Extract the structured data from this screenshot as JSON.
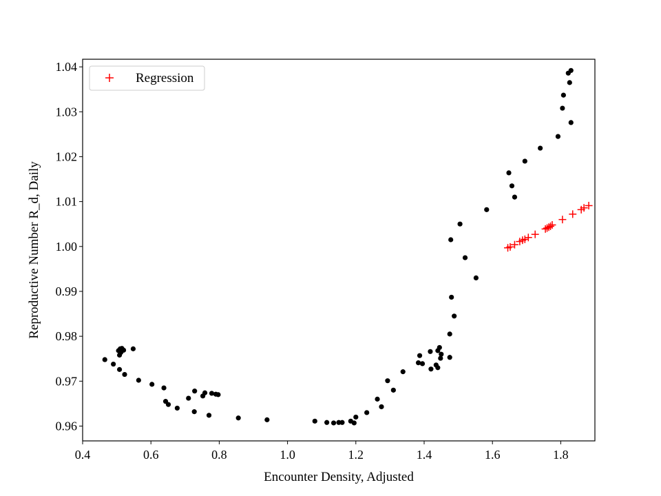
{
  "chart_data": {
    "type": "scatter",
    "title": "",
    "xlabel": "Encounter Density, Adjusted",
    "ylabel": "Reproductive Number R_d, Daily",
    "xlim": [
      0.4,
      1.9
    ],
    "ylim": [
      0.9567,
      1.0417
    ],
    "xticks": [
      {
        "value": 0.4,
        "label": "0.4"
      },
      {
        "value": 0.6,
        "label": "0.6"
      },
      {
        "value": 0.8,
        "label": "0.8"
      },
      {
        "value": 1.0,
        "label": "1.0"
      },
      {
        "value": 1.2,
        "label": "1.2"
      },
      {
        "value": 1.4,
        "label": "1.4"
      },
      {
        "value": 1.6,
        "label": "1.6"
      },
      {
        "value": 1.8,
        "label": "1.8"
      }
    ],
    "yticks": [
      {
        "value": 0.96,
        "label": "0.96"
      },
      {
        "value": 0.97,
        "label": "0.97"
      },
      {
        "value": 0.98,
        "label": "0.98"
      },
      {
        "value": 0.99,
        "label": "0.99"
      },
      {
        "value": 1.0,
        "label": "1.00"
      },
      {
        "value": 1.01,
        "label": "1.01"
      },
      {
        "value": 1.02,
        "label": "1.02"
      },
      {
        "value": 1.03,
        "label": "1.03"
      },
      {
        "value": 1.04,
        "label": "1.04"
      }
    ],
    "grid": false,
    "legend": {
      "position": "top-left",
      "entries": [
        "Regression"
      ]
    },
    "colors": {
      "observed": "#000000",
      "regression": "#ff0000"
    },
    "series": [
      {
        "marker": "dot",
        "points": [
          [
            0.465,
            0.9748
          ],
          [
            0.49,
            0.9738
          ],
          [
            0.505,
            0.9768
          ],
          [
            0.51,
            0.9772
          ],
          [
            0.515,
            0.9773
          ],
          [
            0.52,
            0.9769
          ],
          [
            0.508,
            0.9758
          ],
          [
            0.512,
            0.9764
          ],
          [
            0.508,
            0.9726
          ],
          [
            0.523,
            0.9715
          ],
          [
            0.548,
            0.9772
          ],
          [
            0.564,
            0.9702
          ],
          [
            0.603,
            0.9693
          ],
          [
            0.638,
            0.9685
          ],
          [
            0.643,
            0.9655
          ],
          [
            0.651,
            0.9648
          ],
          [
            0.677,
            0.964
          ],
          [
            0.71,
            0.9662
          ],
          [
            0.727,
            0.9632
          ],
          [
            0.728,
            0.9678
          ],
          [
            0.752,
            0.9667
          ],
          [
            0.758,
            0.9674
          ],
          [
            0.77,
            0.9624
          ],
          [
            0.778,
            0.9673
          ],
          [
            0.79,
            0.9671
          ],
          [
            0.797,
            0.967
          ],
          [
            0.856,
            0.9618
          ],
          [
            0.94,
            0.9614
          ],
          [
            1.08,
            0.9611
          ],
          [
            1.115,
            0.9608
          ],
          [
            1.135,
            0.9607
          ],
          [
            1.15,
            0.9608
          ],
          [
            1.16,
            0.9608
          ],
          [
            1.185,
            0.9611
          ],
          [
            1.195,
            0.9607
          ],
          [
            1.2,
            0.962
          ],
          [
            1.232,
            0.963
          ],
          [
            1.263,
            0.966
          ],
          [
            1.275,
            0.9643
          ],
          [
            1.293,
            0.9701
          ],
          [
            1.31,
            0.968
          ],
          [
            1.338,
            0.9721
          ],
          [
            1.383,
            0.9741
          ],
          [
            1.387,
            0.9757
          ],
          [
            1.395,
            0.9739
          ],
          [
            1.418,
            0.9766
          ],
          [
            1.42,
            0.9727
          ],
          [
            1.435,
            0.9736
          ],
          [
            1.44,
            0.9768
          ],
          [
            1.44,
            0.973
          ],
          [
            1.445,
            0.9775
          ],
          [
            1.448,
            0.9751
          ],
          [
            1.45,
            0.976
          ],
          [
            1.475,
            0.9753
          ],
          [
            1.475,
            0.9805
          ],
          [
            1.478,
            1.0015
          ],
          [
            1.48,
            0.9887
          ],
          [
            1.488,
            0.9845
          ],
          [
            1.505,
            1.005
          ],
          [
            1.52,
            0.9975
          ],
          [
            1.552,
            0.993
          ],
          [
            1.583,
            1.0082
          ],
          [
            1.648,
            1.0164
          ],
          [
            1.657,
            1.0135
          ],
          [
            1.665,
            1.011
          ],
          [
            1.695,
            1.019
          ],
          [
            1.74,
            1.0219
          ],
          [
            1.792,
            1.0245
          ],
          [
            1.805,
            1.0308
          ],
          [
            1.808,
            1.0337
          ],
          [
            1.822,
            1.0386
          ],
          [
            1.826,
            1.0365
          ],
          [
            1.83,
            1.0392
          ],
          [
            1.83,
            1.0276
          ]
        ]
      },
      {
        "name": "Regression",
        "marker": "plus",
        "points": [
          [
            1.645,
            0.9997
          ],
          [
            1.652,
            0.9999
          ],
          [
            1.665,
            1.0004
          ],
          [
            1.68,
            1.0011
          ],
          [
            1.688,
            1.0014
          ],
          [
            1.695,
            1.0016
          ],
          [
            1.705,
            1.002
          ],
          [
            1.725,
            1.0027
          ],
          [
            1.755,
            1.0039
          ],
          [
            1.76,
            1.0041
          ],
          [
            1.765,
            1.0043
          ],
          [
            1.77,
            1.0045
          ],
          [
            1.775,
            1.0048
          ],
          [
            1.805,
            1.006
          ],
          [
            1.835,
            1.0072
          ],
          [
            1.86,
            1.0082
          ],
          [
            1.868,
            1.0086
          ],
          [
            1.882,
            1.0091
          ]
        ]
      }
    ]
  }
}
